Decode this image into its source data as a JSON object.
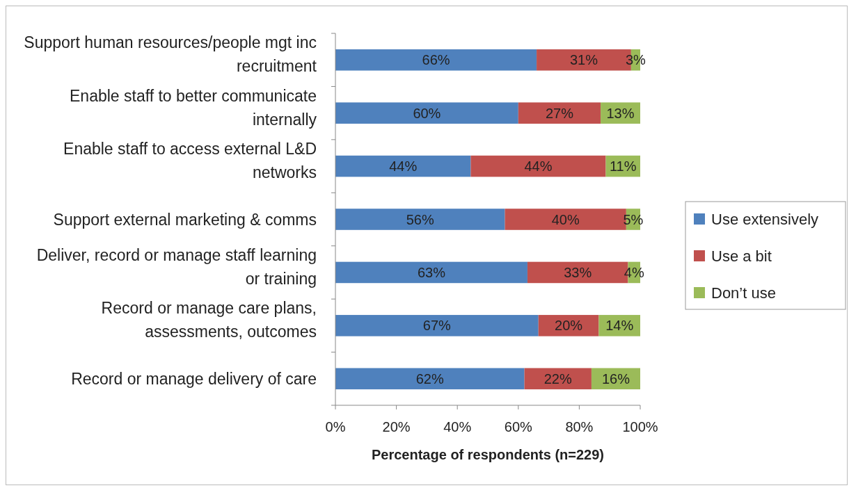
{
  "chart_data": {
    "type": "bar",
    "orientation": "horizontal",
    "stacked": true,
    "xlabel": "Percentage of respondents (n=229)",
    "categories": [
      "Support human resources/people mgt inc recruitment",
      "Enable staff to better communicate internally",
      "Enable staff to access external L&D networks",
      "Support external marketing & comms",
      "Deliver, record or manage staff learning or training",
      "Record or manage care plans, assessments, outcomes",
      "Record or manage delivery of care"
    ],
    "series": [
      {
        "name": "Use extensively",
        "color": "#4f81bd",
        "values": [
          66,
          60,
          44.4,
          55.6,
          63,
          66.6,
          62
        ],
        "value_labels": [
          "66%",
          "60%",
          "44%",
          "56%",
          "63%",
          "67%",
          "62%"
        ]
      },
      {
        "name": "Use a bit",
        "color": "#c0504d",
        "values": [
          31,
          27,
          44.3,
          39.8,
          33,
          19.8,
          22
        ],
        "value_labels": [
          "31%",
          "27%",
          "44%",
          "40%",
          "33%",
          "20%",
          "22%"
        ]
      },
      {
        "name": "Don’t use",
        "color": "#9bbb59",
        "values": [
          3,
          13,
          11.3,
          4.6,
          4,
          13.6,
          16
        ],
        "value_labels": [
          "3%",
          "13%",
          "11%",
          "5%",
          "4%",
          "14%",
          "16%"
        ]
      }
    ],
    "xlim": [
      0,
      100
    ],
    "xticks": [
      {
        "value": 0,
        "label": "0%"
      },
      {
        "value": 20,
        "label": "20%"
      },
      {
        "value": 40,
        "label": "40%"
      },
      {
        "value": 60,
        "label": "60%"
      },
      {
        "value": 80,
        "label": "80%"
      },
      {
        "value": 100,
        "label": "100%"
      }
    ],
    "grid": false,
    "legend": "right"
  }
}
